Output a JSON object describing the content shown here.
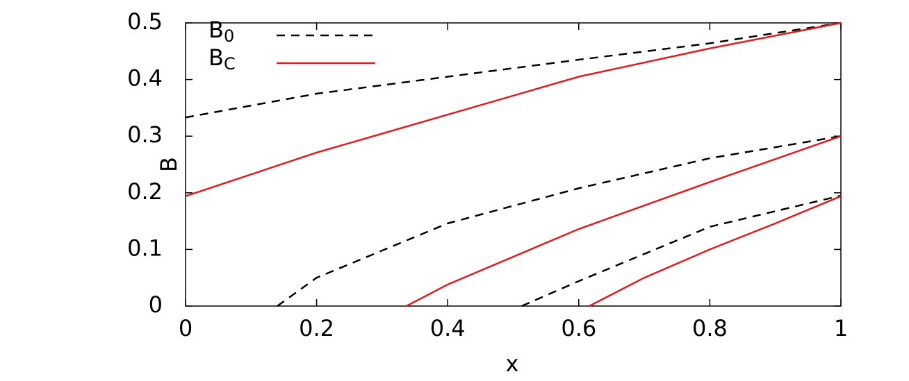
{
  "chart_data": {
    "type": "line",
    "x_label": "x",
    "y_label": "B",
    "xlim": [
      0,
      1
    ],
    "xticks": [
      0,
      0.2,
      0.4,
      0.6,
      0.8,
      1
    ],
    "ylim": [
      0,
      0.5
    ],
    "yticks": [
      0,
      0.1,
      0.2,
      0.3,
      0.4,
      0.5
    ],
    "series": [
      {
        "name": "B",
        "subscript": "0",
        "color": "#000000",
        "style": "dashed",
        "x": [
          0,
          0.2,
          0.4,
          0.6,
          0.8,
          1
        ],
        "values": [
          0.333,
          0.375,
          0.405,
          0.435,
          0.464,
          0.5
        ]
      },
      {
        "name": "B",
        "subscript": "C",
        "color": "#e41a1c",
        "style": "solid",
        "x": [
          0,
          0.2,
          0.4,
          0.6,
          0.8,
          1
        ],
        "values": [
          0.194,
          0.271,
          0.338,
          0.405,
          0.455,
          0.5
        ]
      },
      {
        "color": "#000000",
        "style": "dashed",
        "x": [
          0.14,
          0.2,
          0.4,
          0.6,
          0.8,
          1
        ],
        "values": [
          0,
          0.05,
          0.146,
          0.208,
          0.261,
          0.3
        ]
      },
      {
        "color": "#e41a1c",
        "style": "solid",
        "x": [
          0.337,
          0.4,
          0.6,
          0.8,
          1
        ],
        "values": [
          0,
          0.038,
          0.136,
          0.219,
          0.3
        ]
      },
      {
        "color": "#000000",
        "style": "dashed",
        "x": [
          0.513,
          0.6,
          0.8,
          1
        ],
        "values": [
          0,
          0.044,
          0.14,
          0.195
        ]
      },
      {
        "color": "#e41a1c",
        "style": "solid",
        "x": [
          0.616,
          0.7,
          0.8,
          0.9,
          1
        ],
        "values": [
          0,
          0.05,
          0.1,
          0.146,
          0.194
        ]
      }
    ]
  }
}
